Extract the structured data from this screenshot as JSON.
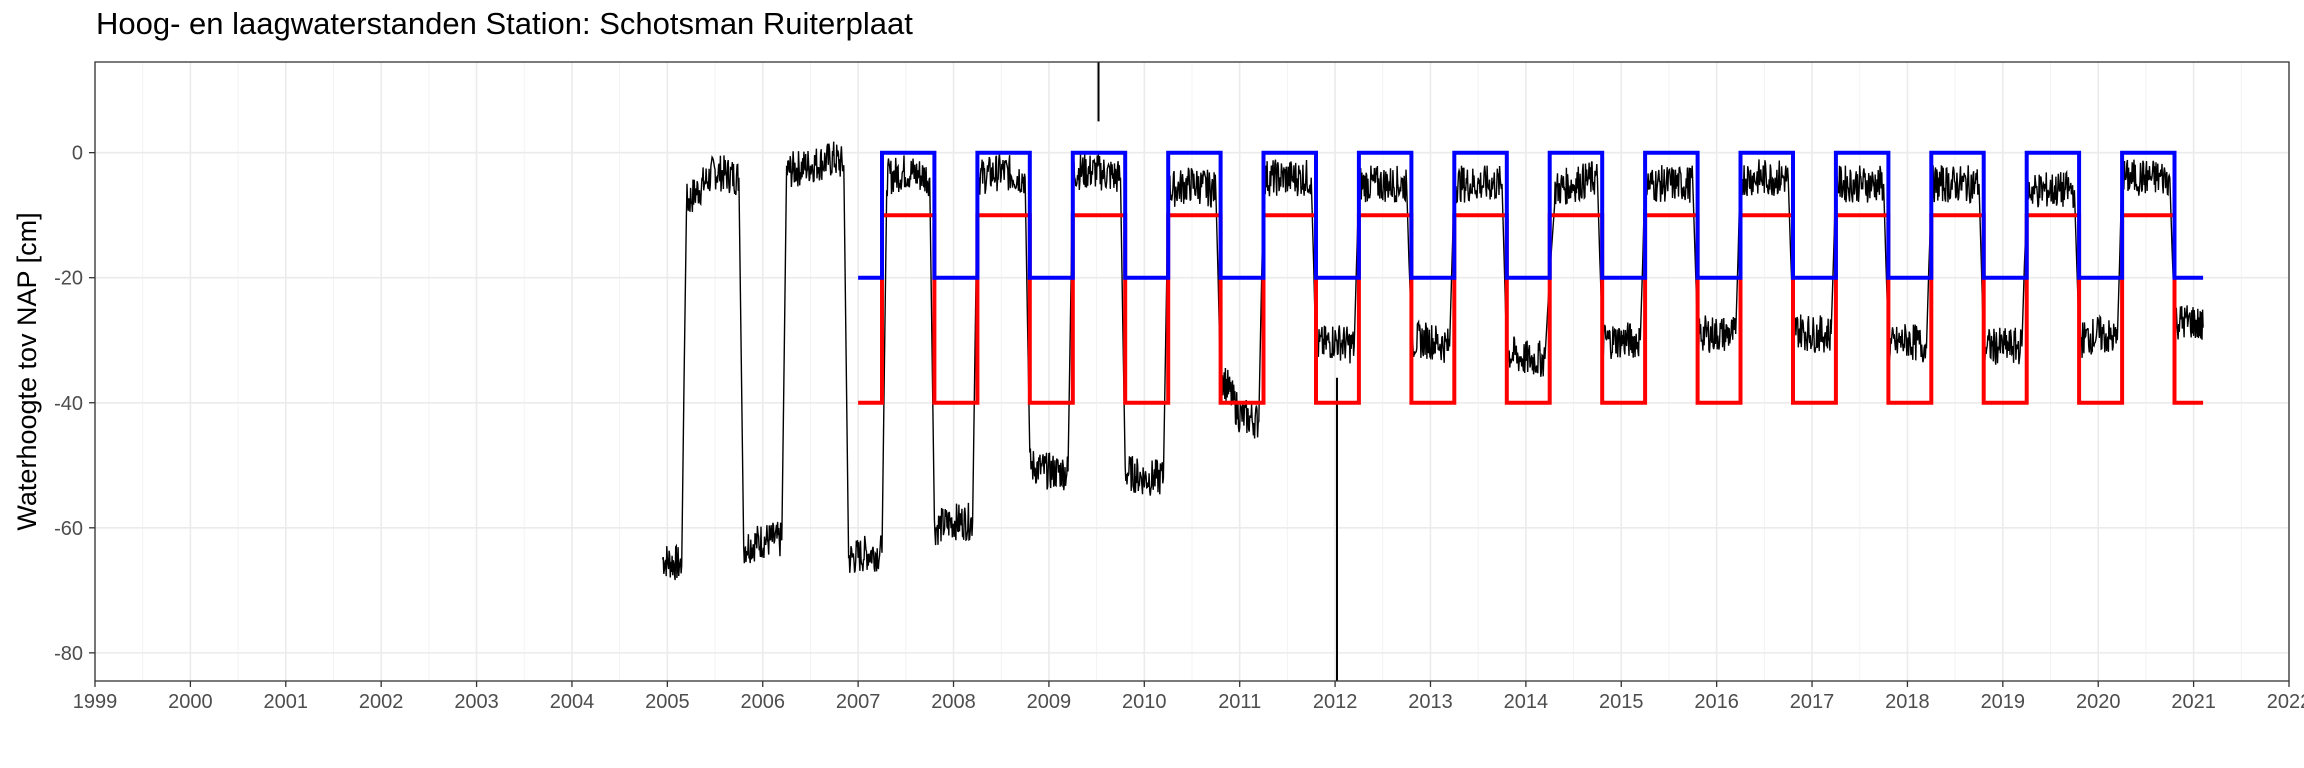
{
  "chart_data": {
    "type": "line",
    "title": "Hoog- en laagwaterstanden Station: Schotsman Ruiterplaat",
    "xlabel": "",
    "ylabel": "Waterhoogte tov NAP [cm]",
    "xlim": [
      1999,
      2022
    ],
    "ylim": [
      -84.5,
      14.5
    ],
    "x_ticks": [
      "1999",
      "2000",
      "2001",
      "2002",
      "2003",
      "2004",
      "2005",
      "2006",
      "2007",
      "2008",
      "2009",
      "2010",
      "2011",
      "2012",
      "2013",
      "2014",
      "2015",
      "2016",
      "2017",
      "2018",
      "2019",
      "2020",
      "2021",
      "2022"
    ],
    "y_ticks": [
      "0",
      "-20",
      "-40",
      "-60",
      "-80"
    ],
    "grid": true,
    "legend": "none",
    "colors": {
      "measured": "#000000",
      "upper_target": "#0000ff",
      "lower_target": "#ff0000",
      "grid": "#ebebeb",
      "border": "#333333"
    },
    "series": [
      {
        "color": "#000000",
        "segments": [
          [
            2004.95,
            -65
          ],
          [
            2005.15,
            -66
          ],
          [
            2005.2,
            -8
          ],
          [
            2005.5,
            -3
          ],
          [
            2005.75,
            -4
          ],
          [
            2005.8,
            -63
          ],
          [
            2006.0,
            -62
          ],
          [
            2006.2,
            -62
          ],
          [
            2006.25,
            -3
          ],
          [
            2006.5,
            -2
          ],
          [
            2006.75,
            -1
          ],
          [
            2006.85,
            -2
          ],
          [
            2006.9,
            -65
          ],
          [
            2007.1,
            -64
          ],
          [
            2007.25,
            -64
          ],
          [
            2007.3,
            -4
          ],
          [
            2007.5,
            -3
          ],
          [
            2007.75,
            -4
          ],
          [
            2007.8,
            -60
          ],
          [
            2008.0,
            -59
          ],
          [
            2008.2,
            -59
          ],
          [
            2008.25,
            -4
          ],
          [
            2008.5,
            -3
          ],
          [
            2008.75,
            -4
          ],
          [
            2008.8,
            -50
          ],
          [
            2009.0,
            -51
          ],
          [
            2009.2,
            -51
          ],
          [
            2009.25,
            -3
          ],
          [
            2009.5,
            -3
          ],
          [
            2009.75,
            -4
          ],
          [
            2009.8,
            -51
          ],
          [
            2010.0,
            -52
          ],
          [
            2010.2,
            -52
          ],
          [
            2010.25,
            -6
          ],
          [
            2010.5,
            -5
          ],
          [
            2010.75,
            -6
          ],
          [
            2010.8,
            -35
          ],
          [
            2011.0,
            -42
          ],
          [
            2011.2,
            -43
          ],
          [
            2011.25,
            -4
          ],
          [
            2011.5,
            -4
          ],
          [
            2011.75,
            -4
          ],
          [
            2011.8,
            -31
          ],
          [
            2012.0,
            -30
          ],
          [
            2012.2,
            -31
          ],
          [
            2012.25,
            -5
          ],
          [
            2012.5,
            -5
          ],
          [
            2012.75,
            -5
          ],
          [
            2012.8,
            -30
          ],
          [
            2013.0,
            -30
          ],
          [
            2013.2,
            -31
          ],
          [
            2013.25,
            -5
          ],
          [
            2013.5,
            -5
          ],
          [
            2013.75,
            -5
          ],
          [
            2013.8,
            -32
          ],
          [
            2014.0,
            -33
          ],
          [
            2014.2,
            -33
          ],
          [
            2014.3,
            -6
          ],
          [
            2014.5,
            -5
          ],
          [
            2014.75,
            -4
          ],
          [
            2014.8,
            -30
          ],
          [
            2015.0,
            -30
          ],
          [
            2015.2,
            -30
          ],
          [
            2015.25,
            -5
          ],
          [
            2015.5,
            -5
          ],
          [
            2015.75,
            -5
          ],
          [
            2015.8,
            -29
          ],
          [
            2016.0,
            -29
          ],
          [
            2016.2,
            -29
          ],
          [
            2016.25,
            -4
          ],
          [
            2016.5,
            -4
          ],
          [
            2016.75,
            -4
          ],
          [
            2016.8,
            -28
          ],
          [
            2017.0,
            -29
          ],
          [
            2017.2,
            -29
          ],
          [
            2017.25,
            -5
          ],
          [
            2017.5,
            -5
          ],
          [
            2017.75,
            -5
          ],
          [
            2017.8,
            -31
          ],
          [
            2018.0,
            -30
          ],
          [
            2018.2,
            -31
          ],
          [
            2018.25,
            -5
          ],
          [
            2018.5,
            -5
          ],
          [
            2018.75,
            -5
          ],
          [
            2018.8,
            -31
          ],
          [
            2019.0,
            -31
          ],
          [
            2019.2,
            -31
          ],
          [
            2019.25,
            -6
          ],
          [
            2019.5,
            -6
          ],
          [
            2019.75,
            -6
          ],
          [
            2019.8,
            -30
          ],
          [
            2020.0,
            -29
          ],
          [
            2020.2,
            -30
          ],
          [
            2020.25,
            -4
          ],
          [
            2020.5,
            -4
          ],
          [
            2020.75,
            -4
          ],
          [
            2020.8,
            -27
          ],
          [
            2021.0,
            -27
          ],
          [
            2021.1,
            -28
          ]
        ]
      },
      {
        "color": "#0000ff",
        "step": [
          [
            2007.0,
            -20
          ],
          [
            2007.25,
            -20
          ],
          [
            2007.25,
            0
          ],
          [
            2007.8,
            0
          ],
          [
            2007.8,
            -20
          ],
          [
            2008.25,
            -20
          ],
          [
            2008.25,
            0
          ],
          [
            2008.8,
            0
          ],
          [
            2008.8,
            -20
          ],
          [
            2009.25,
            -20
          ],
          [
            2009.25,
            0
          ],
          [
            2009.8,
            0
          ],
          [
            2009.8,
            -20
          ],
          [
            2010.25,
            -20
          ],
          [
            2010.25,
            0
          ],
          [
            2010.8,
            0
          ],
          [
            2010.8,
            -20
          ],
          [
            2011.25,
            -20
          ],
          [
            2011.25,
            0
          ],
          [
            2011.8,
            0
          ],
          [
            2011.8,
            -20
          ],
          [
            2012.25,
            -20
          ],
          [
            2012.25,
            0
          ],
          [
            2012.8,
            0
          ],
          [
            2012.8,
            -20
          ],
          [
            2013.25,
            -20
          ],
          [
            2013.25,
            0
          ],
          [
            2013.8,
            0
          ],
          [
            2013.8,
            -20
          ],
          [
            2014.25,
            -20
          ],
          [
            2014.25,
            0
          ],
          [
            2014.8,
            0
          ],
          [
            2014.8,
            -20
          ],
          [
            2015.25,
            -20
          ],
          [
            2015.25,
            0
          ],
          [
            2015.8,
            0
          ],
          [
            2015.8,
            -20
          ],
          [
            2016.25,
            -20
          ],
          [
            2016.25,
            0
          ],
          [
            2016.8,
            0
          ],
          [
            2016.8,
            -20
          ],
          [
            2017.25,
            -20
          ],
          [
            2017.25,
            0
          ],
          [
            2017.8,
            0
          ],
          [
            2017.8,
            -20
          ],
          [
            2018.25,
            -20
          ],
          [
            2018.25,
            0
          ],
          [
            2018.8,
            0
          ],
          [
            2018.8,
            -20
          ],
          [
            2019.25,
            -20
          ],
          [
            2019.25,
            0
          ],
          [
            2019.8,
            0
          ],
          [
            2019.8,
            -20
          ],
          [
            2020.25,
            -20
          ],
          [
            2020.25,
            0
          ],
          [
            2020.8,
            0
          ],
          [
            2020.8,
            -20
          ],
          [
            2021.1,
            -20
          ]
        ]
      },
      {
        "color": "#ff0000",
        "step": [
          [
            2007.0,
            -40
          ],
          [
            2007.25,
            -40
          ],
          [
            2007.25,
            -10
          ],
          [
            2007.8,
            -10
          ],
          [
            2007.8,
            -40
          ],
          [
            2008.25,
            -40
          ],
          [
            2008.25,
            -10
          ],
          [
            2008.8,
            -10
          ],
          [
            2008.8,
            -40
          ],
          [
            2009.25,
            -40
          ],
          [
            2009.25,
            -10
          ],
          [
            2009.8,
            -10
          ],
          [
            2009.8,
            -40
          ],
          [
            2010.25,
            -40
          ],
          [
            2010.25,
            -10
          ],
          [
            2010.8,
            -10
          ],
          [
            2010.8,
            -40
          ],
          [
            2011.25,
            -40
          ],
          [
            2011.25,
            -10
          ],
          [
            2011.8,
            -10
          ],
          [
            2011.8,
            -40
          ],
          [
            2012.25,
            -40
          ],
          [
            2012.25,
            -10
          ],
          [
            2012.8,
            -10
          ],
          [
            2012.8,
            -40
          ],
          [
            2013.25,
            -40
          ],
          [
            2013.25,
            -10
          ],
          [
            2013.8,
            -10
          ],
          [
            2013.8,
            -40
          ],
          [
            2014.25,
            -40
          ],
          [
            2014.25,
            -10
          ],
          [
            2014.8,
            -10
          ],
          [
            2014.8,
            -40
          ],
          [
            2015.25,
            -40
          ],
          [
            2015.25,
            -10
          ],
          [
            2015.8,
            -10
          ],
          [
            2015.8,
            -40
          ],
          [
            2016.25,
            -40
          ],
          [
            2016.25,
            -10
          ],
          [
            2016.8,
            -10
          ],
          [
            2016.8,
            -40
          ],
          [
            2017.25,
            -40
          ],
          [
            2017.25,
            -10
          ],
          [
            2017.8,
            -10
          ],
          [
            2017.8,
            -40
          ],
          [
            2018.25,
            -40
          ],
          [
            2018.25,
            -10
          ],
          [
            2018.8,
            -10
          ],
          [
            2018.8,
            -40
          ],
          [
            2019.25,
            -40
          ],
          [
            2019.25,
            -10
          ],
          [
            2019.8,
            -10
          ],
          [
            2019.8,
            -40
          ],
          [
            2020.25,
            -40
          ],
          [
            2020.25,
            -10
          ],
          [
            2020.8,
            -10
          ],
          [
            2020.8,
            -40
          ],
          [
            2021.1,
            -40
          ]
        ]
      }
    ],
    "spikes": [
      {
        "x": 2009.52,
        "y_from": 5,
        "y_to": 14.5
      },
      {
        "x": 2012.02,
        "y_from": -36,
        "y_to": -84.5
      }
    ]
  }
}
